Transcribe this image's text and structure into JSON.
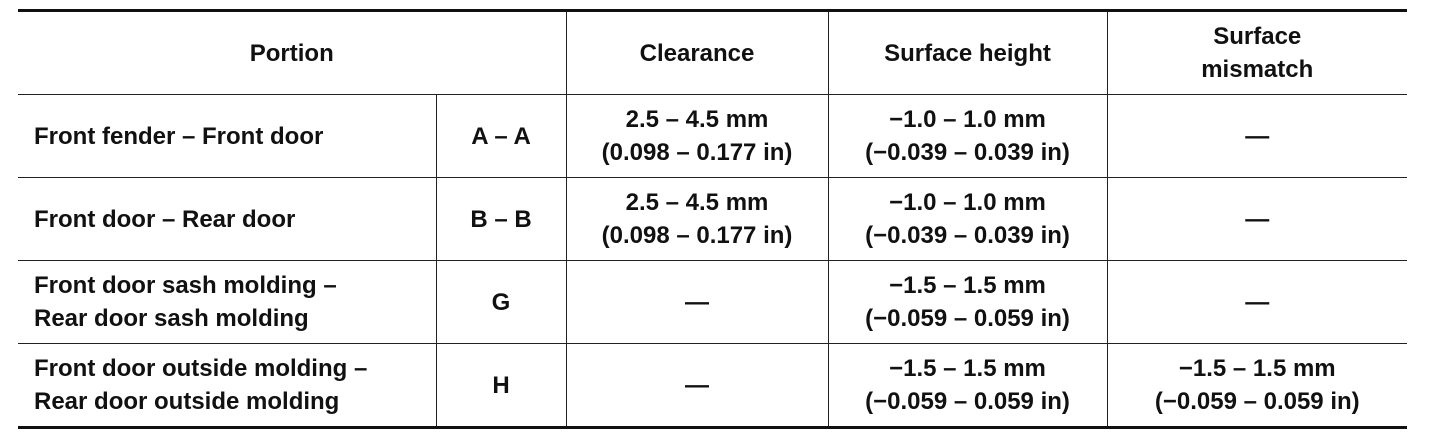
{
  "header": {
    "portion": "Portion",
    "clearance": "Clearance",
    "surface_height": "Surface height",
    "surface_mismatch": [
      "Surface",
      "mismatch"
    ]
  },
  "rows": [
    {
      "portion": [
        "Front fender – Front door"
      ],
      "point": "A – A",
      "clearance": [
        "2.5 – 4.5 mm",
        "(0.098 – 0.177 in)"
      ],
      "surface_height": [
        "−1.0 – 1.0 mm",
        "(−0.039 – 0.039 in)"
      ],
      "surface_mismatch": [
        "—"
      ]
    },
    {
      "portion": [
        "Front door – Rear door"
      ],
      "point": "B – B",
      "clearance": [
        "2.5 – 4.5 mm",
        "(0.098 – 0.177 in)"
      ],
      "surface_height": [
        "−1.0 – 1.0 mm",
        "(−0.039 – 0.039 in)"
      ],
      "surface_mismatch": [
        "—"
      ]
    },
    {
      "portion": [
        "Front door sash molding –",
        "Rear door sash molding"
      ],
      "point": "G",
      "clearance": [
        "—"
      ],
      "surface_height": [
        "−1.5 – 1.5 mm",
        "(−0.059 – 0.059 in)"
      ],
      "surface_mismatch": [
        "—"
      ]
    },
    {
      "portion": [
        "Front door outside molding –",
        "Rear door outside molding"
      ],
      "point": "H",
      "clearance": [
        "—"
      ],
      "surface_height": [
        "−1.5 – 1.5 mm",
        "(−0.059 – 0.059 in)"
      ],
      "surface_mismatch": [
        "−1.5 – 1.5 mm",
        "(−0.059 – 0.059 in)"
      ]
    }
  ]
}
